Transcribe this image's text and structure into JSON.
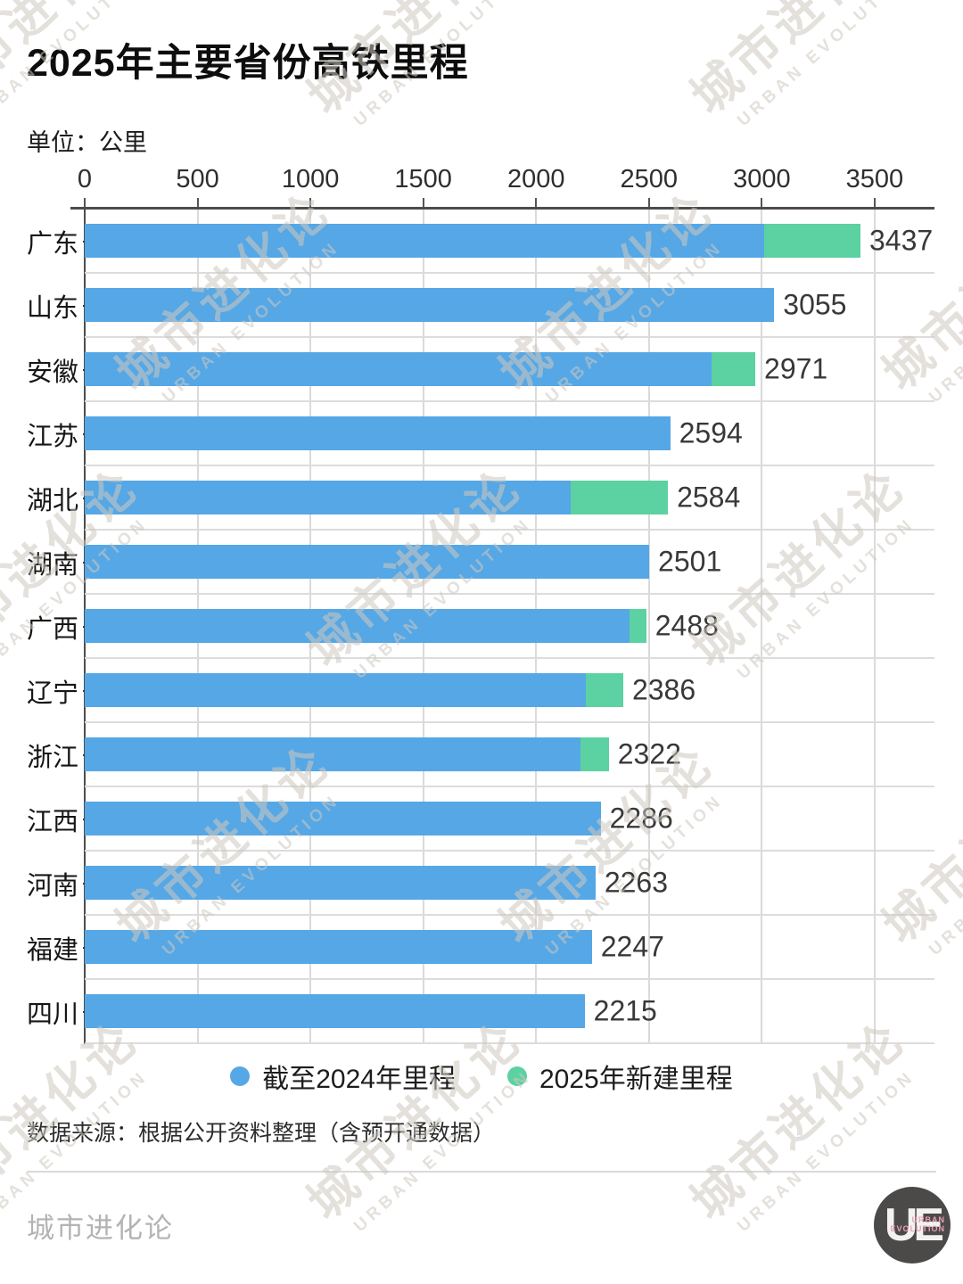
{
  "title": "2025年主要省份高铁里程",
  "unit_label": "单位：公里",
  "chart_data": {
    "type": "bar",
    "orientation": "horizontal",
    "title": "2025年主要省份高铁里程",
    "unit": "公里",
    "categories": [
      "广东",
      "山东",
      "安徽",
      "江苏",
      "湖北",
      "湖南",
      "广西",
      "辽宁",
      "浙江",
      "江西",
      "河南",
      "福建",
      "四川"
    ],
    "series": [
      {
        "name": "截至2024年里程",
        "color": "#55a7e5",
        "values": [
          3010,
          3055,
          2776,
          2594,
          2155,
          2501,
          2413,
          2222,
          2198,
          2286,
          2263,
          2247,
          2215
        ]
      },
      {
        "name": "2025年新建里程",
        "color": "#5cd1a1",
        "values": [
          427,
          0,
          195,
          0,
          429,
          0,
          75,
          164,
          124,
          0,
          0,
          0,
          0
        ]
      }
    ],
    "totals": [
      3437,
      3055,
      2971,
      2594,
      2584,
      2501,
      2488,
      2386,
      2322,
      2286,
      2263,
      2247,
      2215
    ],
    "x_ticks": [
      0,
      500,
      1000,
      1500,
      2000,
      2500,
      3000,
      3500
    ],
    "x_axis_max_layout": 3765,
    "grid": true,
    "legend_position": "bottom"
  },
  "legend": [
    {
      "label": "截至2024年里程",
      "color": "#55a7e5"
    },
    {
      "label": "2025年新建里程",
      "color": "#5cd1a1"
    }
  ],
  "source": "数据来源：根据公开资料整理（含预开通数据）",
  "footer": {
    "brand": "城市进化论",
    "logo_text": "UE",
    "logo_sub1": "URBAN",
    "logo_sub2": "EVOLUTION"
  },
  "watermark": {
    "line1": "城市进化论",
    "line2": "URBAN EVOLUTION"
  },
  "colors": {
    "bar_2024": "#55a7e5",
    "bar_2025_new": "#5cd1a1",
    "axis_line": "#4d4d4d",
    "gridline": "#dadada",
    "value_text": "#383838",
    "brand_text": "#b3b3b3",
    "logo_bg": "#4c4a49",
    "logo_accent": "#e9a2b6"
  }
}
